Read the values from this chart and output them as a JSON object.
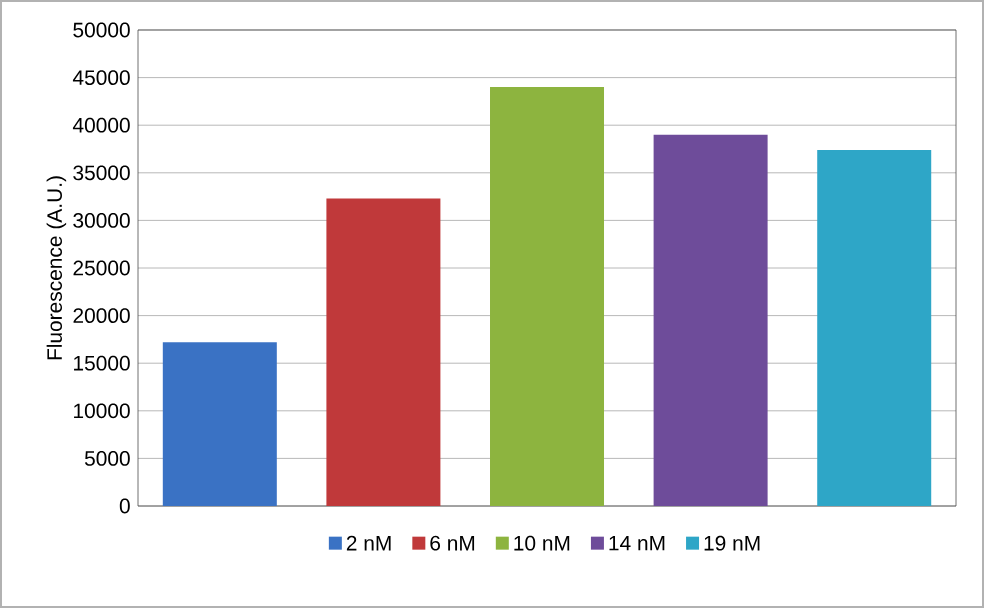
{
  "chart_data": {
    "type": "bar",
    "ylabel": "Fluorescence (A.U.)",
    "categories": [
      null,
      null,
      null,
      null,
      null
    ],
    "series": [
      {
        "name": "2 nM",
        "color": "#3a72c4",
        "values": [
          17200,
          null,
          null,
          null,
          null
        ]
      },
      {
        "name": "6 nM",
        "color": "#c0393a",
        "values": [
          null,
          32300,
          null,
          null,
          null
        ]
      },
      {
        "name": "10 nM",
        "color": "#8db43f",
        "values": [
          null,
          null,
          44000,
          null,
          null
        ]
      },
      {
        "name": "14 nM",
        "color": "#6e4c9a",
        "values": [
          null,
          null,
          null,
          39000,
          null
        ]
      },
      {
        "name": "19 nM",
        "color": "#2ea6c7",
        "values": [
          null,
          null,
          null,
          null,
          37400
        ]
      }
    ],
    "ylim": [
      0,
      50000
    ],
    "yticks": [
      0,
      5000,
      10000,
      15000,
      20000,
      25000,
      30000,
      35000,
      40000,
      45000,
      50000
    ],
    "grid": "y",
    "legend": "bottom",
    "tick_labels": "y"
  }
}
